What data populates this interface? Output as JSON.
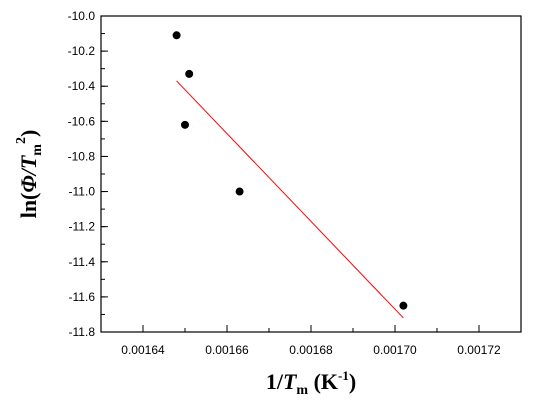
{
  "chart_data": {
    "type": "scatter",
    "xlabel": {
      "prefix": "1/",
      "var": "T",
      "sub": "m",
      "unit_open": " (K",
      "unit_sup": "-1",
      "unit_close": ")"
    },
    "ylabel": {
      "prefix": "ln(",
      "var": "Φ/T",
      "sub": "m",
      "sup": "2",
      "close": ")"
    },
    "xlim": [
      0.00163,
      0.00173
    ],
    "ylim": [
      -11.8,
      -10.0
    ],
    "xticks": [
      "0.00164",
      "0.00166",
      "0.00168",
      "0.00170",
      "0.00172"
    ],
    "yticks": [
      "-10.0",
      "-10.2",
      "-10.4",
      "-10.6",
      "-10.8",
      "-11.0",
      "-11.2",
      "-11.4",
      "-11.6",
      "-11.8"
    ],
    "grid": false,
    "series": [
      {
        "kind": "points",
        "color": "#000000",
        "x": [
          0.001648,
          0.001651,
          0.00165,
          0.001663,
          0.001702
        ],
        "y": [
          -10.11,
          -10.33,
          -10.62,
          -11.0,
          -11.65
        ]
      },
      {
        "kind": "fit-line",
        "color": "#ff0000",
        "x": [
          0.001648,
          0.001702
        ],
        "y": [
          -10.37,
          -11.72
        ]
      }
    ]
  }
}
